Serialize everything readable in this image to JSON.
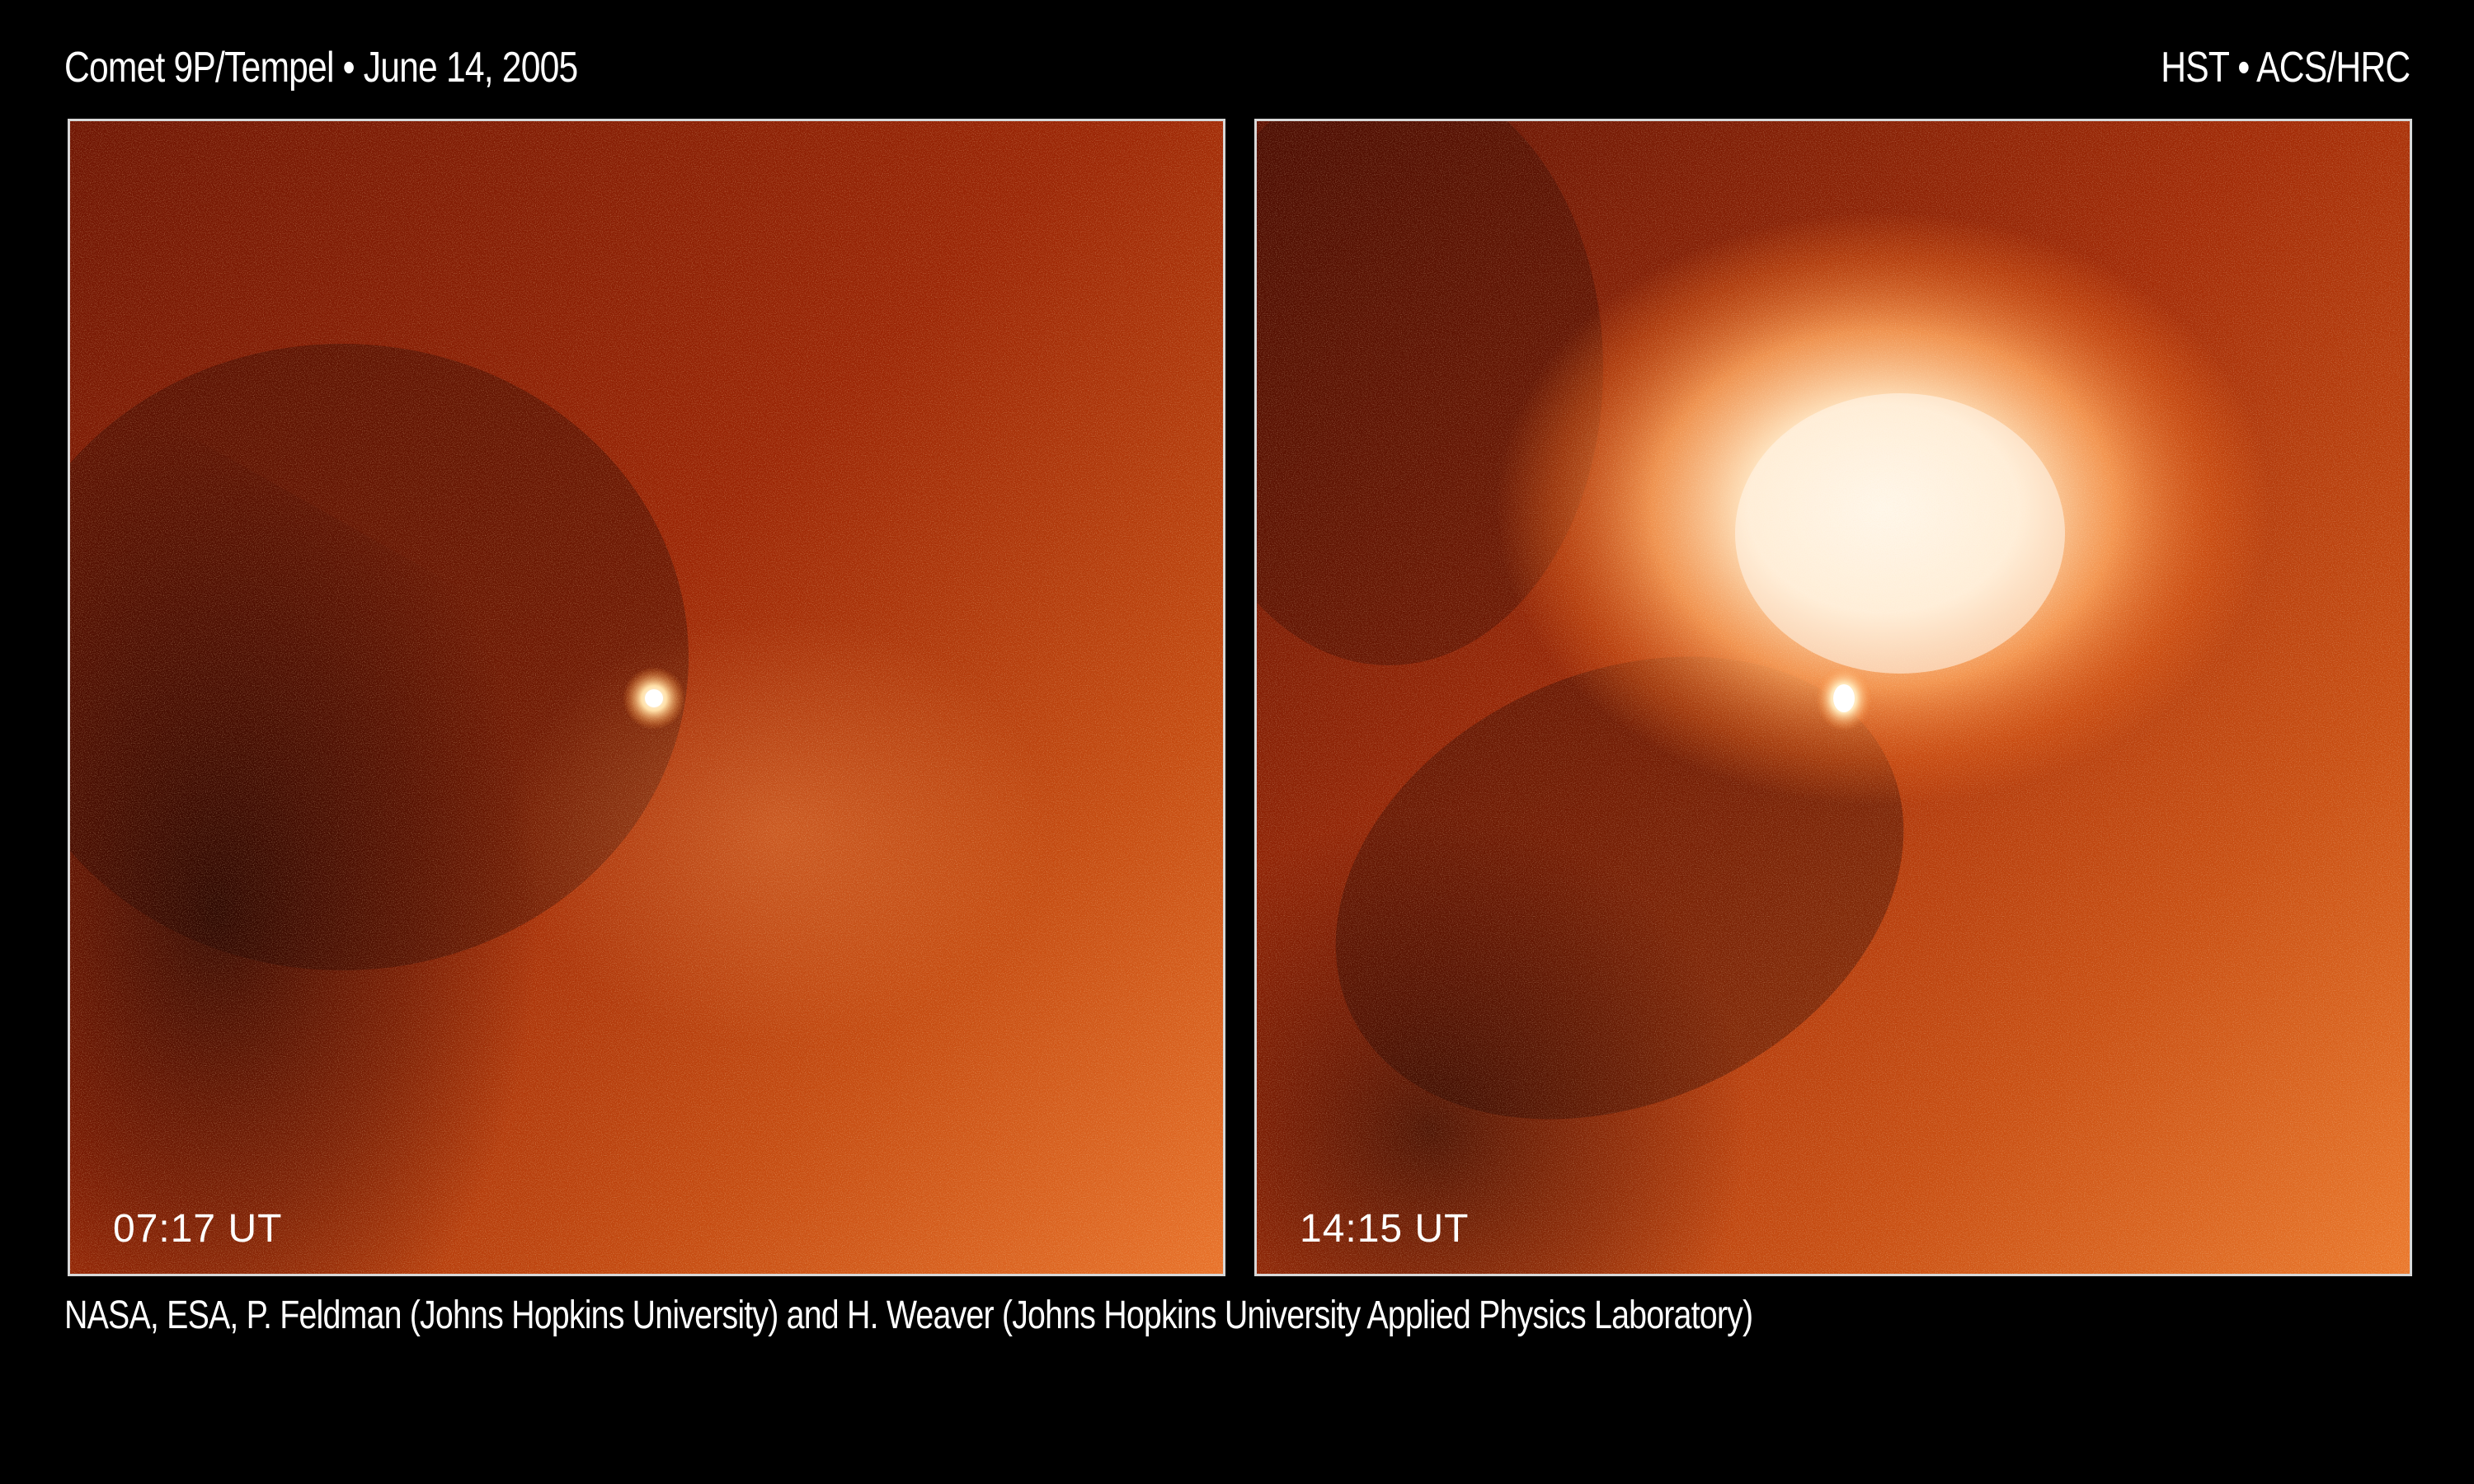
{
  "header": {
    "title": "Comet 9P/Tempel • June 14, 2005",
    "instrument": "HST • ACS/HRC"
  },
  "panels": [
    {
      "time_label": "07:17 UT"
    },
    {
      "time_label": "14:15 UT"
    }
  ],
  "footer": {
    "credit": "NASA, ESA, P. Feldman (Johns Hopkins University) and H. Weaver (Johns Hopkins University Applied Physics Laboratory)"
  },
  "colors": {
    "background": "#000000",
    "frame": "#d8d8d8",
    "deep_red": "#5a0e00",
    "red": "#a22a06",
    "orange": "#e8641a",
    "hot": "#fff2dc"
  }
}
